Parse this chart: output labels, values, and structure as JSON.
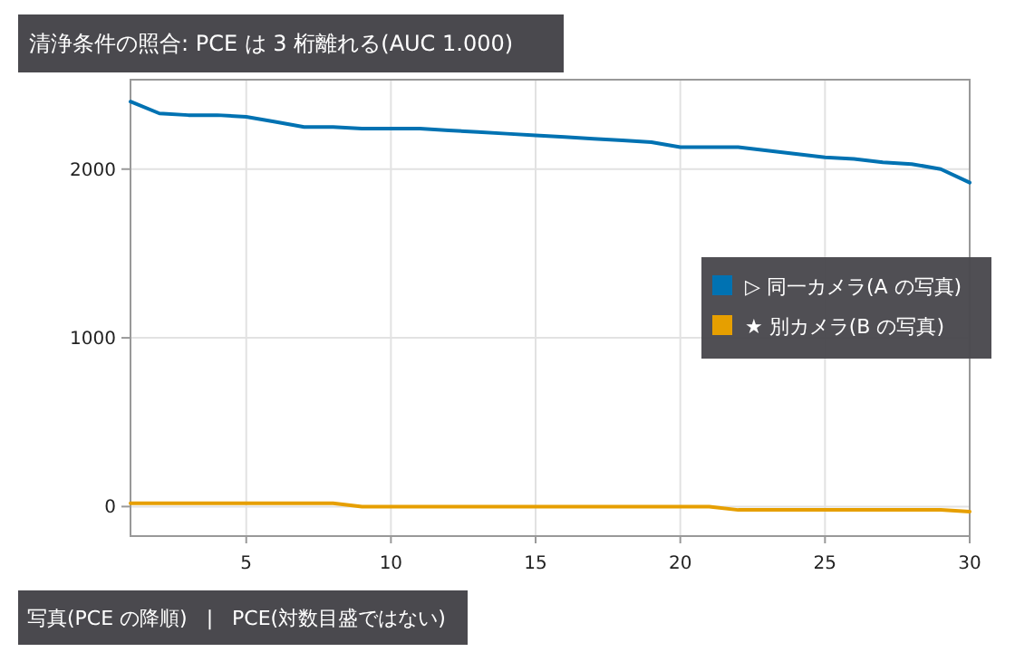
{
  "chart_data": {
    "type": "line",
    "title": "清浄条件の照合: PCE は 3 桁離れる(AUC 1.000)",
    "xlabel": "写真(PCE の降順)   |   PCE(対数目盛ではない)",
    "x": [
      1,
      2,
      3,
      4,
      5,
      6,
      7,
      8,
      9,
      10,
      11,
      12,
      13,
      14,
      15,
      16,
      17,
      18,
      19,
      20,
      21,
      22,
      23,
      24,
      25,
      26,
      27,
      28,
      29,
      30
    ],
    "series": [
      {
        "name": "▷ 同一カメラ(A の写真)",
        "color": "#0072b2",
        "values": [
          2400,
          2330,
          2320,
          2320,
          2310,
          2280,
          2250,
          2250,
          2240,
          2240,
          2240,
          2230,
          2220,
          2210,
          2200,
          2190,
          2180,
          2170,
          2160,
          2130,
          2130,
          2130,
          2110,
          2090,
          2070,
          2060,
          2040,
          2030,
          2000,
          1920
        ]
      },
      {
        "name": "★ 別カメラ(B の写真)",
        "color": "#e69f00",
        "values": [
          20,
          20,
          20,
          20,
          20,
          20,
          20,
          20,
          0,
          0,
          0,
          0,
          0,
          0,
          0,
          0,
          0,
          0,
          0,
          0,
          0,
          -20,
          -20,
          -20,
          -20,
          -20,
          -20,
          -20,
          -20,
          -30
        ]
      }
    ],
    "xlim": [
      1,
      30
    ],
    "xticks": [
      5,
      10,
      15,
      20,
      25,
      30
    ],
    "ylim": [
      -175,
      2530
    ],
    "yticks": [
      0,
      1000,
      2000
    ],
    "grid": true,
    "legend": "right",
    "marker": "none",
    "line_style": "solid"
  }
}
